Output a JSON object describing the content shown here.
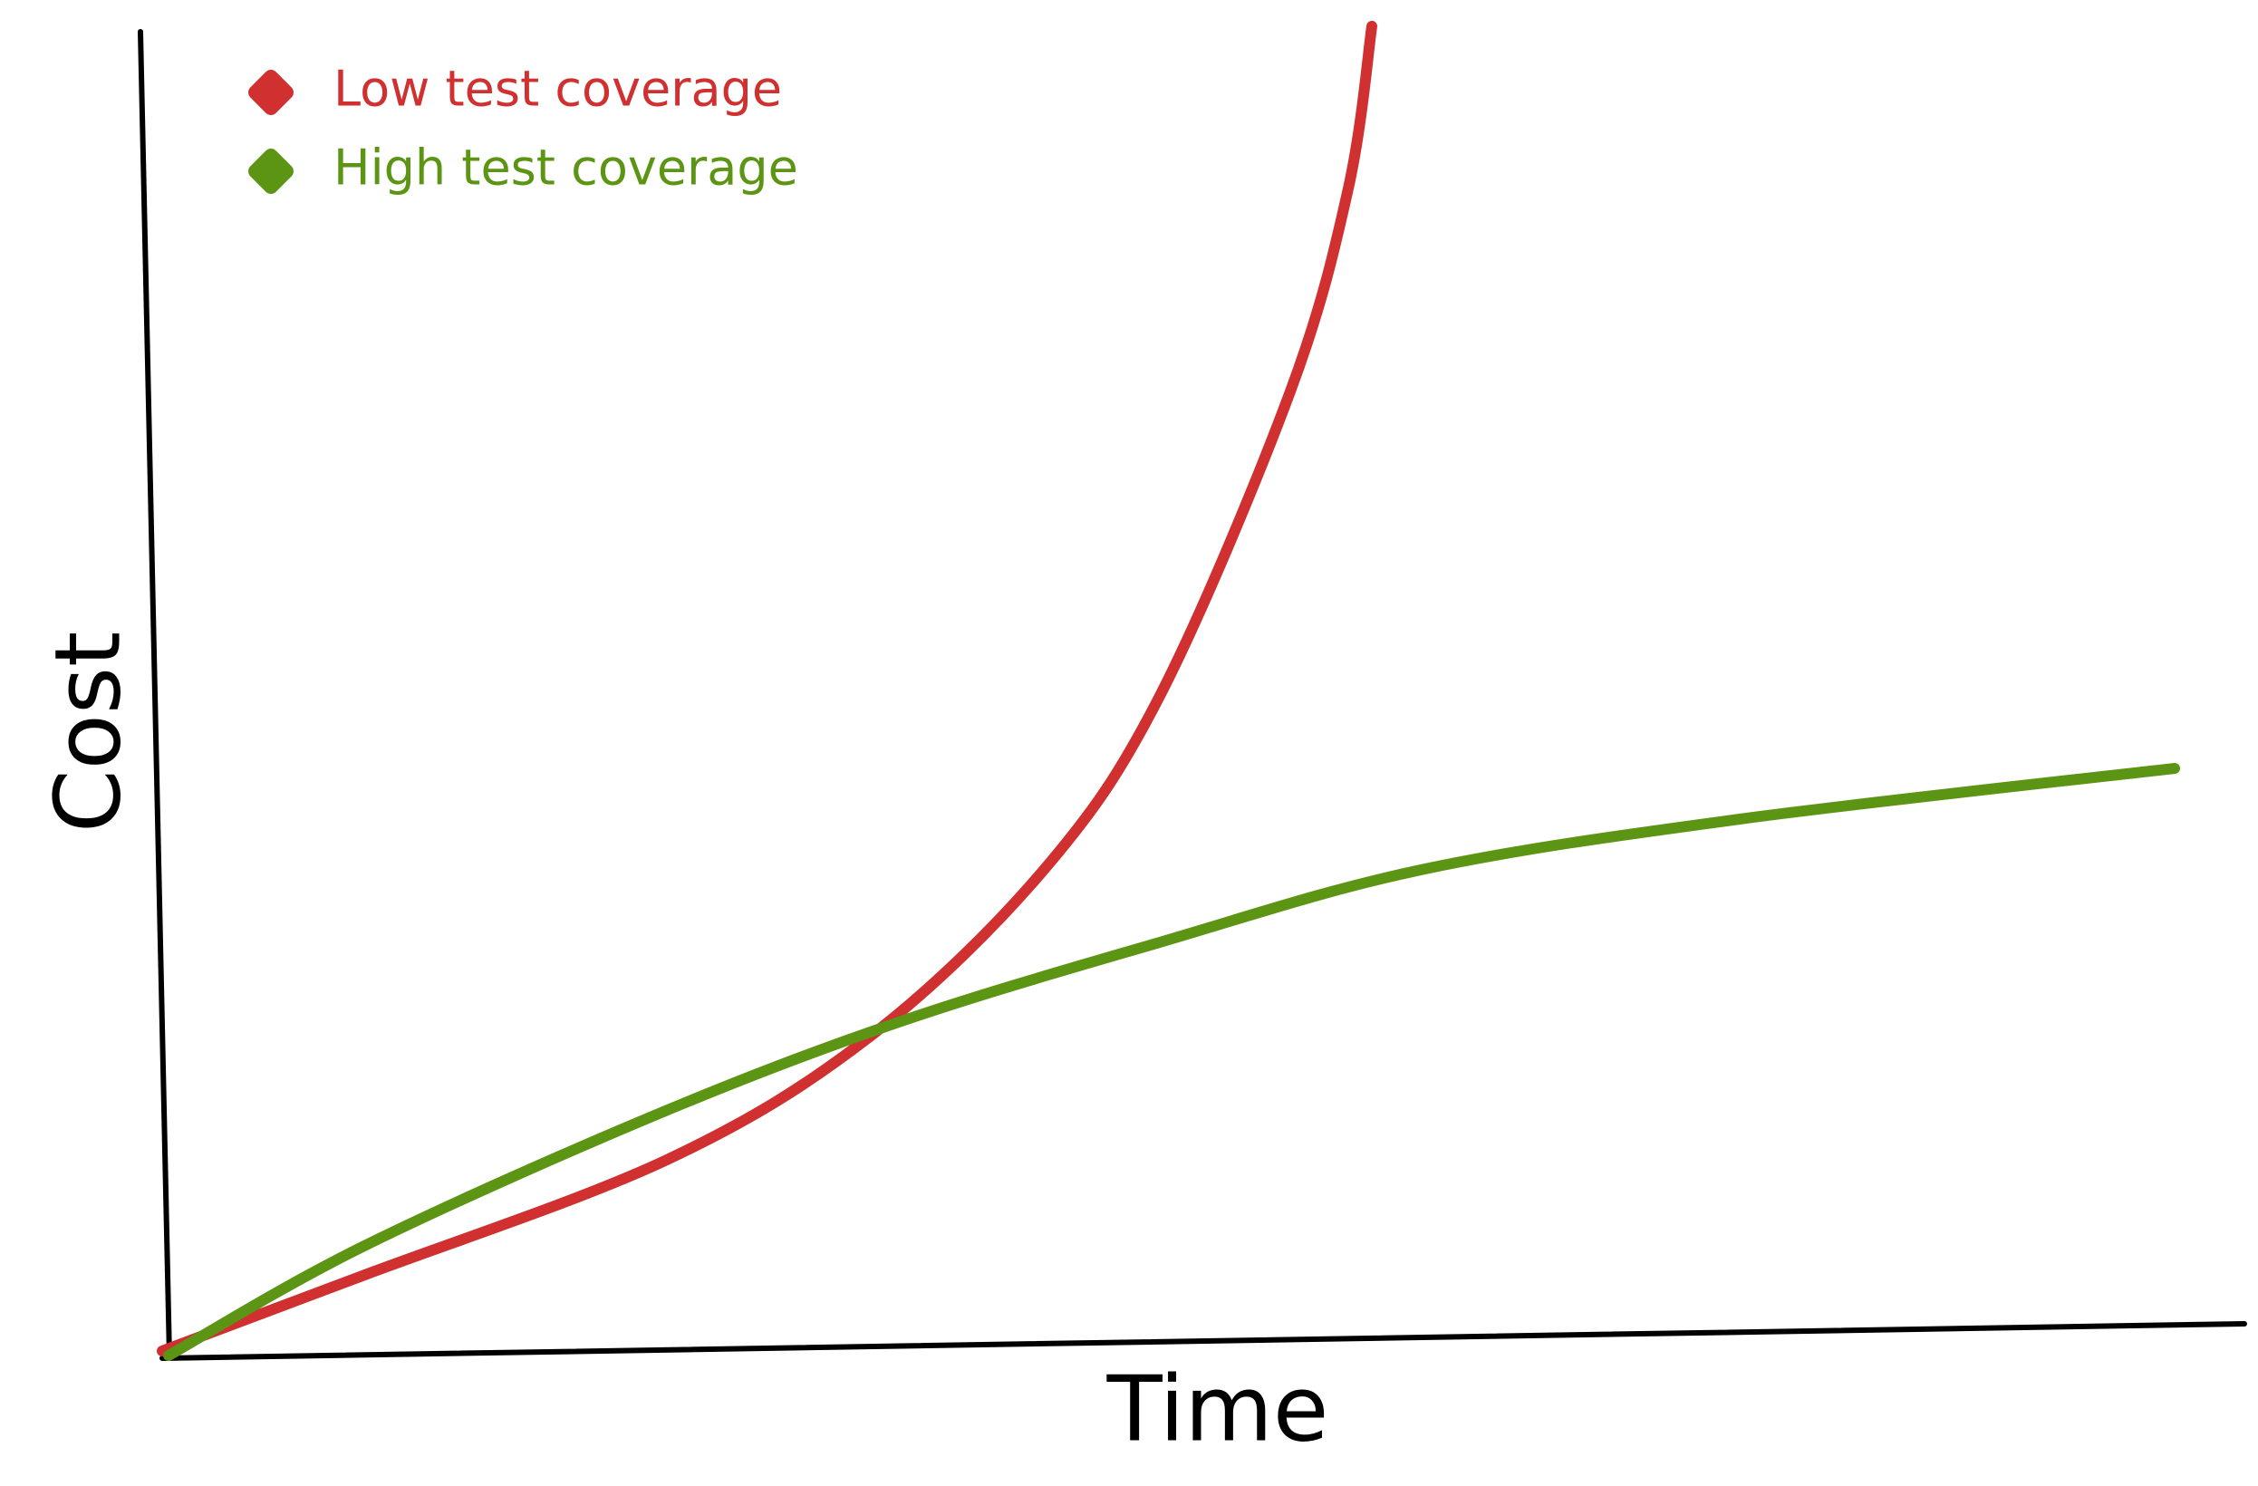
{
  "chart_data": {
    "type": "line",
    "x_label": "Time",
    "y_label": "Cost",
    "series": [
      {
        "name": "Low test coverage",
        "color": "#d0302f"
      },
      {
        "name": "High test coverage",
        "color": "#5c9514"
      }
    ]
  }
}
